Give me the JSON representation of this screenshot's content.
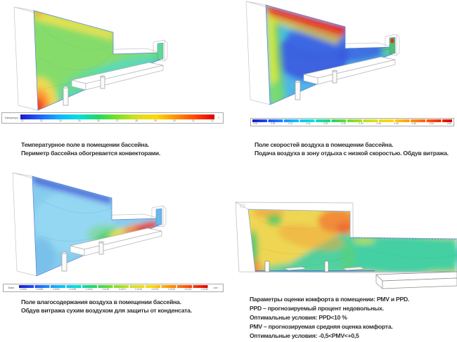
{
  "document": {
    "background": "#ffffff",
    "text_color": "#2d2d2d",
    "language": "ru"
  },
  "panels": [
    {
      "id": "temperature-field",
      "figure": "CFD temperature contour section of pool hall, green field, warm yellow ceiling zone, hot red spot at heated perimeter, cool cyan band over pool",
      "caption_lines": [
        "Температурное поле в помещении бассейна.",
        "Периметр бассейна обогревается конвекторами."
      ],
      "legend": {
        "label_left": "Температура",
        "unit_right": "T",
        "ticks": [
          "22",
          "23",
          "24",
          "25",
          "26",
          "27",
          "28",
          "29",
          "30",
          "31",
          "32"
        ],
        "gradient": [
          "#1a1ac8",
          "#2060ff",
          "#10b4ff",
          "#00e0e0",
          "#20d860",
          "#80e020",
          "#d8e020",
          "#ffd800",
          "#ff9000",
          "#ff4800",
          "#e00000"
        ]
      }
    },
    {
      "id": "air-velocity-field",
      "figure": "CFD air speed section, red high-velocity supply jet along ceiling, yellow-green wash over glazing, blue low-speed recreation zone",
      "caption_lines": [
        "Поле скоростей воздуха в помещении бассейна.",
        "Подача воздуха в зону отдыха с низкой скоростью. Обдув витража."
      ],
      "legend": {
        "label_left": "",
        "unit_right": "",
        "ticks": [
          "0.00",
          "0.05",
          "0.10",
          "0.15",
          "0.20",
          "0.25",
          "0.30",
          "0.35",
          "0.40",
          "0.45",
          "0.50",
          "0.55"
        ],
        "gradient": [
          "#1a1ac8",
          "#2060ff",
          "#10b4ff",
          "#00e0e0",
          "#20d860",
          "#80e020",
          "#d8e020",
          "#ffd800",
          "#ff9000",
          "#ff4800",
          "#e00000"
        ]
      }
    },
    {
      "id": "moisture-field",
      "figure": "CFD air moisture content section, dry dark-blue jet along glazing, pale blue hall, humid green-yellow-red plume above pool water",
      "caption_lines": [
        "Поле влагосодержания воздуха в помещении бассейна.",
        "Обдув витража сухим воздухом для защиты от конденсата."
      ],
      "legend": {
        "label_left": "Влага",
        "unit_right": "кг/кг",
        "ticks": [
          "0.0080",
          "0.0085",
          "0.0090",
          "0.0095",
          "0.0100",
          "0.0105",
          "0.0110",
          "0.0115",
          "0.0120",
          "0.0125",
          "0.0130",
          "0.0135"
        ],
        "gradient": [
          "#1a1ac8",
          "#2060ff",
          "#10b4ff",
          "#00e0e0",
          "#20d860",
          "#80e020",
          "#d8e020",
          "#ffd800",
          "#ff9000",
          "#ff4800",
          "#e00000"
        ]
      }
    },
    {
      "id": "comfort-field",
      "figure": "PMV/PPD comfort index section, yellow-orange hall with green comfortable zones, red discomfort corners, teal zone over pool",
      "caption_lines": [
        "Параметры оценки комфорта в помещении: PMV и PPD.",
        "PPD – прогнозируемый процент недовольных.",
        "Оптимальные условия: PPD<10 %",
        "PMV – прогнозируемая средняя оценка комфорта.",
        "Оптимальные условия: -0,5<PMV<+0,5"
      ]
    }
  ]
}
